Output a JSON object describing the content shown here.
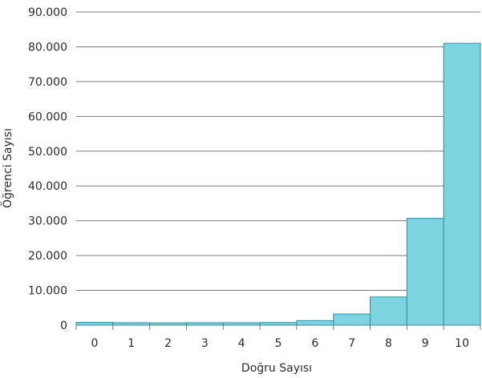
{
  "chart_data": {
    "type": "bar",
    "title": "",
    "xlabel": "Doğru Sayısı",
    "ylabel": "Öğrenci Sayısı",
    "categories": [
      "0",
      "1",
      "2",
      "3",
      "4",
      "5",
      "6",
      "7",
      "8",
      "9",
      "10"
    ],
    "values": [
      800,
      700,
      650,
      700,
      700,
      750,
      1300,
      3200,
      8100,
      30700,
      81000
    ],
    "ylim": [
      0,
      90000
    ],
    "yticks": [
      0,
      10000,
      20000,
      30000,
      40000,
      50000,
      60000,
      70000,
      80000,
      90000
    ],
    "ytick_labels": [
      "0",
      "10.000",
      "20.000",
      "30.000",
      "40.000",
      "50.000",
      "60.000",
      "70.000",
      "80.000",
      "90.000"
    ],
    "grid": true,
    "legend": "none",
    "bar_color": "#7dd3df",
    "bar_edge_color": "#2c8fa3"
  }
}
